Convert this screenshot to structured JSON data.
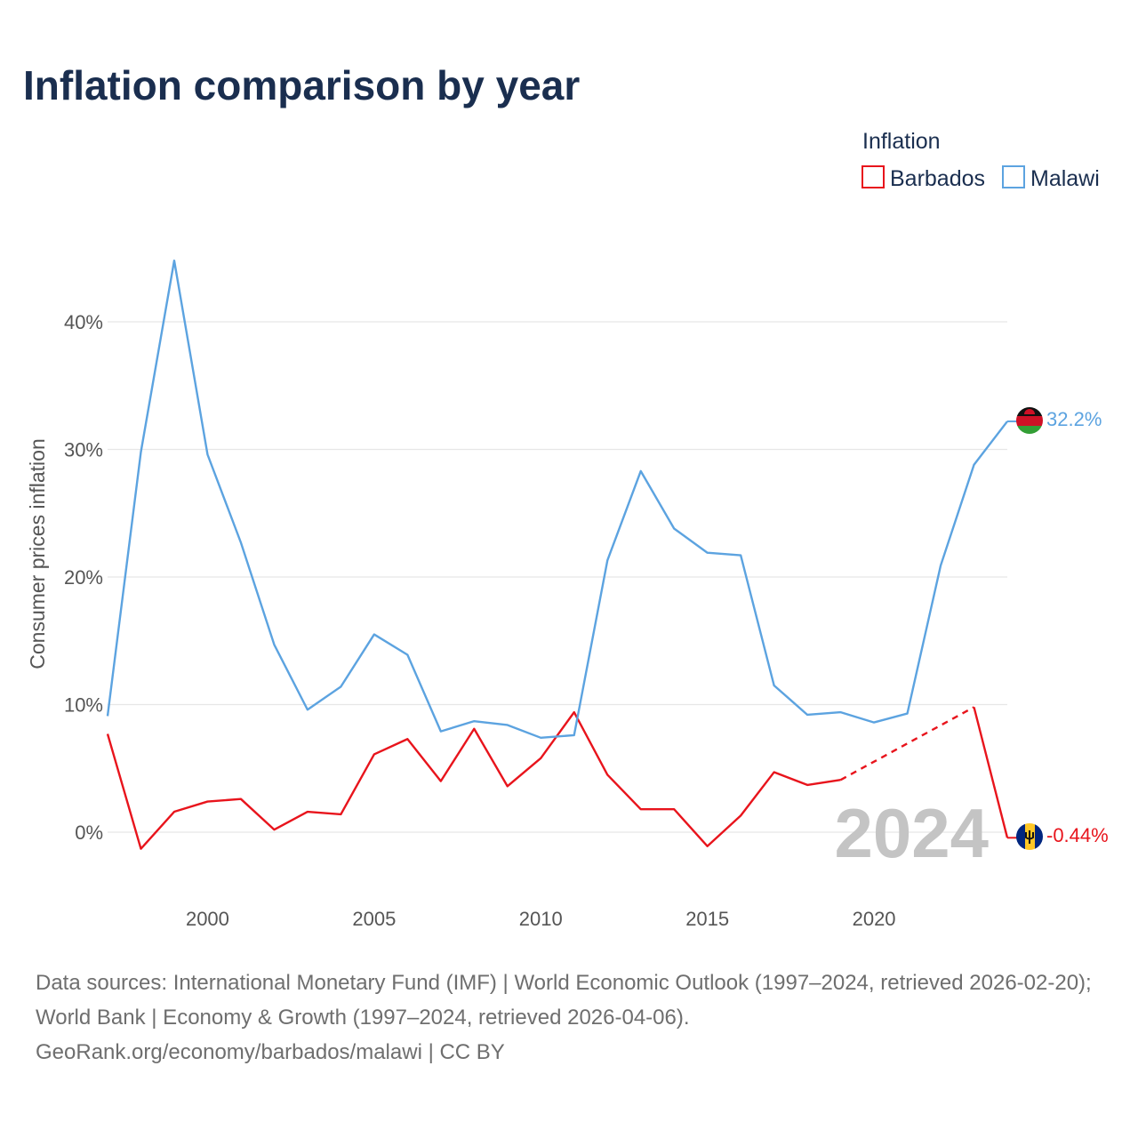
{
  "title": "Inflation comparison by year",
  "legend": {
    "title": "Inflation",
    "items": [
      {
        "label": "Barbados",
        "color": "#e8141c"
      },
      {
        "label": "Malawi",
        "color": "#5ca3e0"
      }
    ]
  },
  "watermark_year": "2024",
  "footer": {
    "sources": "Data sources: International Monetary Fund (IMF) | World Economic Outlook (1997–2024, retrieved 2026-02-20); World Bank | Economy & Growth (1997–2024, retrieved 2026-04-06).",
    "credit": "GeoRank.org/economy/barbados/malawi | CC BY"
  },
  "chart_data": {
    "type": "line",
    "title": "Inflation comparison by year",
    "xlabel": "",
    "ylabel": "Consumer prices inflation",
    "xlim": [
      1997,
      2024
    ],
    "ylim": [
      -4,
      48
    ],
    "x_ticks": [
      2000,
      2005,
      2010,
      2015,
      2020
    ],
    "x_tick_labels": [
      "2000",
      "2005",
      "2010",
      "2015",
      "2020"
    ],
    "y_ticks": [
      0,
      10,
      20,
      30,
      40
    ],
    "y_tick_labels": [
      "0%",
      "10%",
      "20%",
      "30%",
      "40%"
    ],
    "grid": true,
    "legend_position": "top-right",
    "x": [
      1997,
      1998,
      1999,
      2000,
      2001,
      2002,
      2003,
      2004,
      2005,
      2006,
      2007,
      2008,
      2009,
      2010,
      2011,
      2012,
      2013,
      2014,
      2015,
      2016,
      2017,
      2018,
      2019,
      2020,
      2021,
      2022,
      2023,
      2024
    ],
    "series": [
      {
        "name": "Barbados",
        "color": "#e8141c",
        "values": [
          7.7,
          -1.3,
          1.6,
          2.4,
          2.6,
          0.2,
          1.6,
          1.4,
          6.1,
          7.3,
          4.0,
          8.1,
          3.6,
          5.8,
          9.4,
          4.5,
          1.8,
          1.8,
          -1.1,
          1.3,
          4.7,
          3.7,
          4.1,
          null,
          null,
          null,
          9.8,
          -0.44
        ],
        "dashed_segment": {
          "from": 2019,
          "to": 2023
        },
        "end_label": "-0.44%",
        "flag": "barbados-flag"
      },
      {
        "name": "Malawi",
        "color": "#5ca3e0",
        "values": [
          9.1,
          29.8,
          44.8,
          29.6,
          22.7,
          14.7,
          9.6,
          11.4,
          15.5,
          13.9,
          7.9,
          8.7,
          8.4,
          7.4,
          7.6,
          21.3,
          28.3,
          23.8,
          21.9,
          21.7,
          11.5,
          9.2,
          9.4,
          8.6,
          9.3,
          20.9,
          28.8,
          32.2
        ],
        "end_label": "32.2%",
        "flag": "malawi-flag"
      }
    ]
  }
}
